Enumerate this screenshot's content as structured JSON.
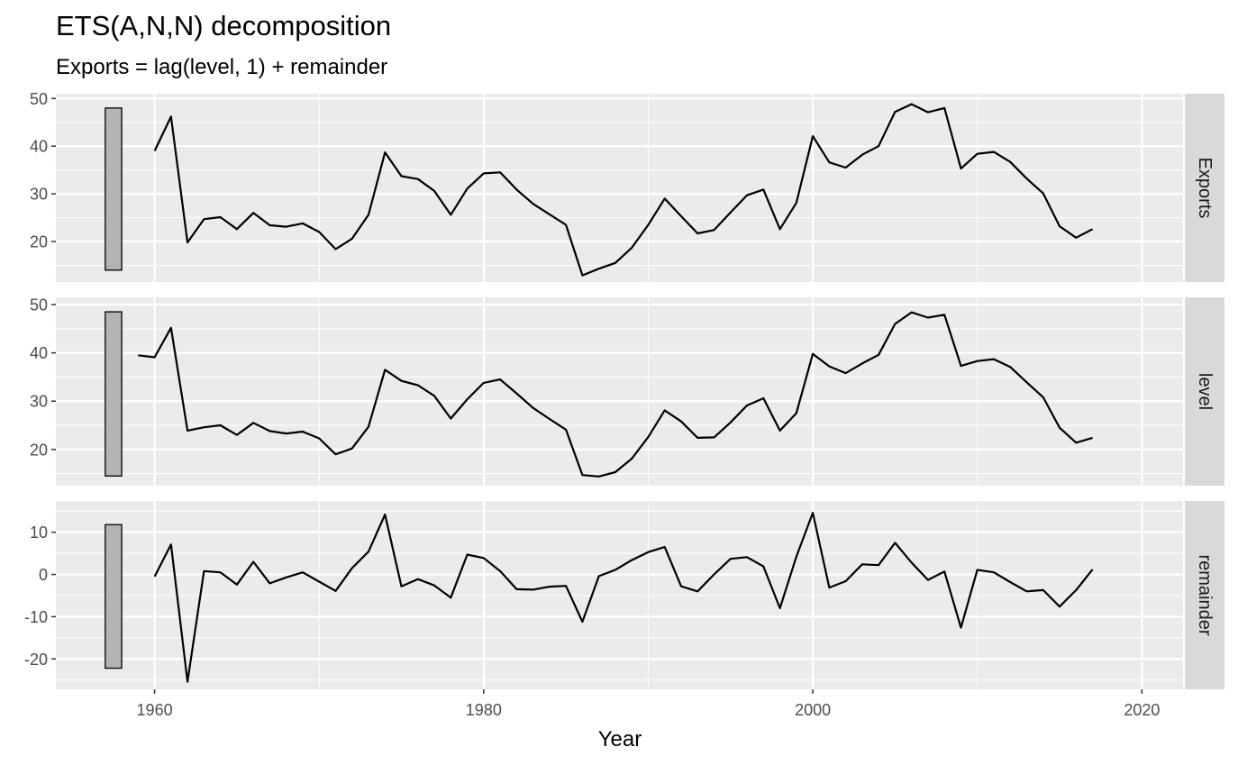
{
  "chart_data": {
    "type": "line",
    "title": "ETS(A,N,N) decomposition",
    "subtitle": "Exports = lag(level, 1) + remainder",
    "xlabel": "Year",
    "ylabel": "",
    "x_ticks": [
      1960,
      1980,
      2000,
      2020
    ],
    "xlim": [
      1954,
      2022.5
    ],
    "grid": true,
    "legend": "none",
    "colors": {
      "panel_bg": "#ebebeb",
      "grid": "#ffffff",
      "strip_bg": "#d9d9d9",
      "line": "#000000",
      "scale_bar": "#b3b3b3"
    },
    "panels": [
      {
        "name": "Exports",
        "ylim": [
          11.5,
          51
        ],
        "y_ticks": [
          20,
          30,
          40,
          50
        ],
        "scale_bar": [
          14,
          48
        ],
        "x": [
          1960,
          1961,
          1962,
          1963,
          1964,
          1965,
          1966,
          1967,
          1968,
          1969,
          1970,
          1971,
          1972,
          1973,
          1974,
          1975,
          1976,
          1977,
          1978,
          1979,
          1980,
          1981,
          1982,
          1983,
          1984,
          1985,
          1986,
          1987,
          1988,
          1989,
          1990,
          1991,
          1992,
          1993,
          1994,
          1995,
          1996,
          1997,
          1998,
          1999,
          2000,
          2001,
          2002,
          2003,
          2004,
          2005,
          2006,
          2007,
          2008,
          2009,
          2010,
          2011,
          2012,
          2013,
          2014,
          2015,
          2016,
          2017
        ],
        "values": [
          39.0,
          46.2,
          19.8,
          24.7,
          25.1,
          22.6,
          26.0,
          23.4,
          23.1,
          23.8,
          22.0,
          18.4,
          20.6,
          25.6,
          38.7,
          33.7,
          33.1,
          30.6,
          25.6,
          31.1,
          34.3,
          34.5,
          30.9,
          27.9,
          25.7,
          23.5,
          12.9,
          14.3,
          15.5,
          18.7,
          23.5,
          29.0,
          25.3,
          21.7,
          22.4,
          26.1,
          29.7,
          30.9,
          22.6,
          28.1,
          42.1,
          36.6,
          35.5,
          38.2,
          40.0,
          47.2,
          48.8,
          47.1,
          48.0,
          35.3,
          38.4,
          38.8,
          36.7,
          33.2,
          30.1,
          23.2,
          20.8,
          22.6
        ]
      },
      {
        "name": "level",
        "ylim": [
          12.5,
          51.5
        ],
        "y_ticks": [
          20,
          30,
          40,
          50
        ],
        "scale_bar": [
          14.5,
          48.5
        ],
        "x": [
          1959,
          1960,
          1961,
          1962,
          1963,
          1964,
          1965,
          1966,
          1967,
          1968,
          1969,
          1970,
          1971,
          1972,
          1973,
          1974,
          1975,
          1976,
          1977,
          1978,
          1979,
          1980,
          1981,
          1982,
          1983,
          1984,
          1985,
          1986,
          1987,
          1988,
          1989,
          1990,
          1991,
          1992,
          1993,
          1994,
          1995,
          1996,
          1997,
          1998,
          1999,
          2000,
          2001,
          2002,
          2003,
          2004,
          2005,
          2006,
          2007,
          2008,
          2009,
          2010,
          2011,
          2012,
          2013,
          2014,
          2015,
          2016,
          2017
        ],
        "values": [
          39.5,
          39.1,
          45.2,
          23.9,
          24.6,
          25.0,
          23.0,
          25.5,
          23.8,
          23.3,
          23.7,
          22.3,
          19.0,
          20.2,
          24.7,
          36.5,
          34.2,
          33.3,
          31.1,
          26.4,
          30.4,
          33.8,
          34.5,
          31.6,
          28.6,
          26.3,
          24.1,
          14.7,
          14.4,
          15.3,
          18.1,
          22.6,
          28.1,
          25.8,
          22.4,
          22.5,
          25.6,
          29.1,
          30.6,
          23.9,
          27.5,
          39.8,
          37.2,
          35.8,
          37.8,
          39.6,
          46.0,
          48.4,
          47.3,
          47.9,
          37.3,
          38.3,
          38.7,
          37.1,
          33.9,
          30.8,
          24.5,
          21.4,
          22.4
        ]
      },
      {
        "name": "remainder",
        "ylim": [
          -27.2,
          17.4
        ],
        "y_ticks": [
          -20,
          -10,
          0,
          10
        ],
        "scale_bar": [
          -22.2,
          11.8
        ],
        "x": [
          1960,
          1961,
          1962,
          1963,
          1964,
          1965,
          1966,
          1967,
          1968,
          1969,
          1970,
          1971,
          1972,
          1973,
          1974,
          1975,
          1976,
          1977,
          1978,
          1979,
          1980,
          1981,
          1982,
          1983,
          1984,
          1985,
          1986,
          1987,
          1988,
          1989,
          1990,
          1991,
          1992,
          1993,
          1994,
          1995,
          1996,
          1997,
          1998,
          1999,
          2000,
          2001,
          2002,
          2003,
          2004,
          2005,
          2006,
          2007,
          2008,
          2009,
          2010,
          2011,
          2012,
          2013,
          2014,
          2015,
          2016,
          2017
        ],
        "values": [
          -0.5,
          7.1,
          -25.4,
          0.8,
          0.5,
          -2.4,
          3.0,
          -2.1,
          -0.7,
          0.5,
          -1.7,
          -3.9,
          1.5,
          5.4,
          14.2,
          -2.8,
          -1.1,
          -2.6,
          -5.5,
          4.7,
          3.9,
          0.8,
          -3.5,
          -3.6,
          -2.9,
          -2.7,
          -11.2,
          -0.4,
          1.1,
          3.4,
          5.3,
          6.5,
          -2.8,
          -4.0,
          0.0,
          3.7,
          4.1,
          1.9,
          -8.0,
          4.2,
          14.6,
          -3.1,
          -1.6,
          2.4,
          2.2,
          7.5,
          2.8,
          -1.3,
          0.7,
          -12.6,
          1.1,
          0.5,
          -1.8,
          -4.0,
          -3.7,
          -7.6,
          -3.7,
          1.2
        ]
      }
    ]
  }
}
